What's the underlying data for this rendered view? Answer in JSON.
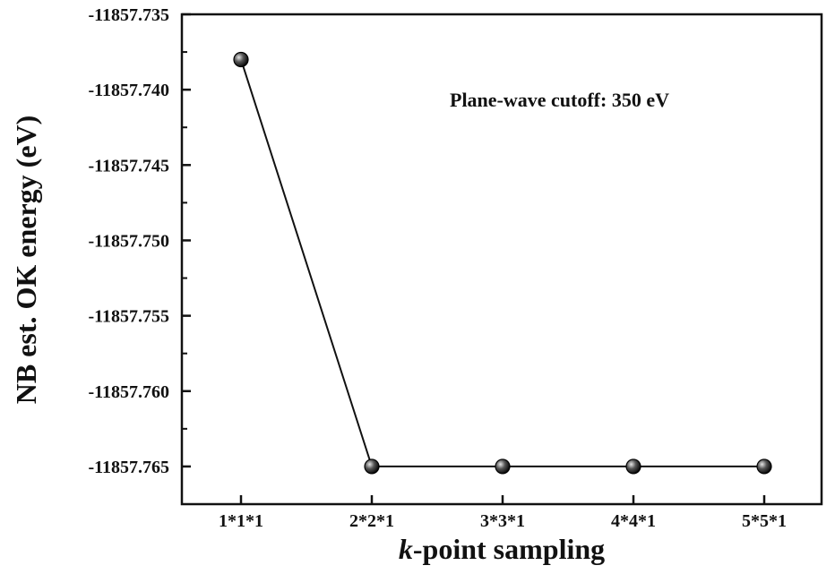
{
  "chart_data": {
    "type": "line",
    "title": "",
    "xlabel_italic": "k",
    "xlabel_rest": "-point sampling",
    "ylabel": "NB est. OK energy (eV)",
    "annotation": "Plane-wave cutoff: 350 eV",
    "categories": [
      "1*1*1",
      "2*2*1",
      "3*3*1",
      "4*4*1",
      "5*5*1"
    ],
    "series": [
      {
        "values": [
          -11857.738,
          -11857.765,
          -11857.765,
          -11857.765,
          -11857.765
        ]
      }
    ],
    "ylim": [
      -11857.7675,
      -11857.735
    ],
    "yticks": [
      "-11857.735",
      "-11857.740",
      "-11857.745",
      "-11857.750",
      "-11857.755",
      "-11857.760",
      "-11857.765"
    ],
    "grid": false,
    "legend": "none"
  }
}
